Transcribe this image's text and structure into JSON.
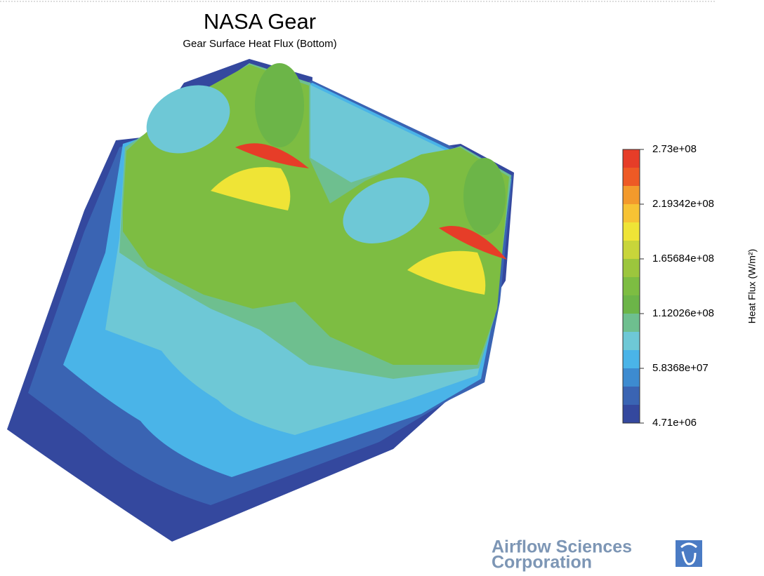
{
  "title": "NASA Gear",
  "subtitle": "Gear Surface Heat Flux (Bottom)",
  "colorbar": {
    "label": "Heat Flux (W/m²)",
    "range": [
      4710000,
      273000000
    ],
    "ticks": [
      {
        "value": 273000000,
        "label": "2.73e+08"
      },
      {
        "value": 219342000,
        "label": "2.19342e+08"
      },
      {
        "value": 165684000,
        "label": "1.65684e+08"
      },
      {
        "value": 112026000,
        "label": "1.12026e+08"
      },
      {
        "value": 58368000,
        "label": "5.8368e+07"
      },
      {
        "value": 4710000,
        "label": "4.71e+06"
      }
    ],
    "colors": [
      "#e63d28",
      "#ee5a25",
      "#f39a2c",
      "#f7c334",
      "#efe436",
      "#c8d53a",
      "#9cc63d",
      "#7dbd42",
      "#6cb548",
      "#6ebf8f",
      "#6ec8d6",
      "#4ab4e8",
      "#3d8bd0",
      "#3a64b3",
      "#34489e"
    ]
  },
  "logo": {
    "line1": "Airflow Sciences",
    "line2": "Corporation"
  }
}
